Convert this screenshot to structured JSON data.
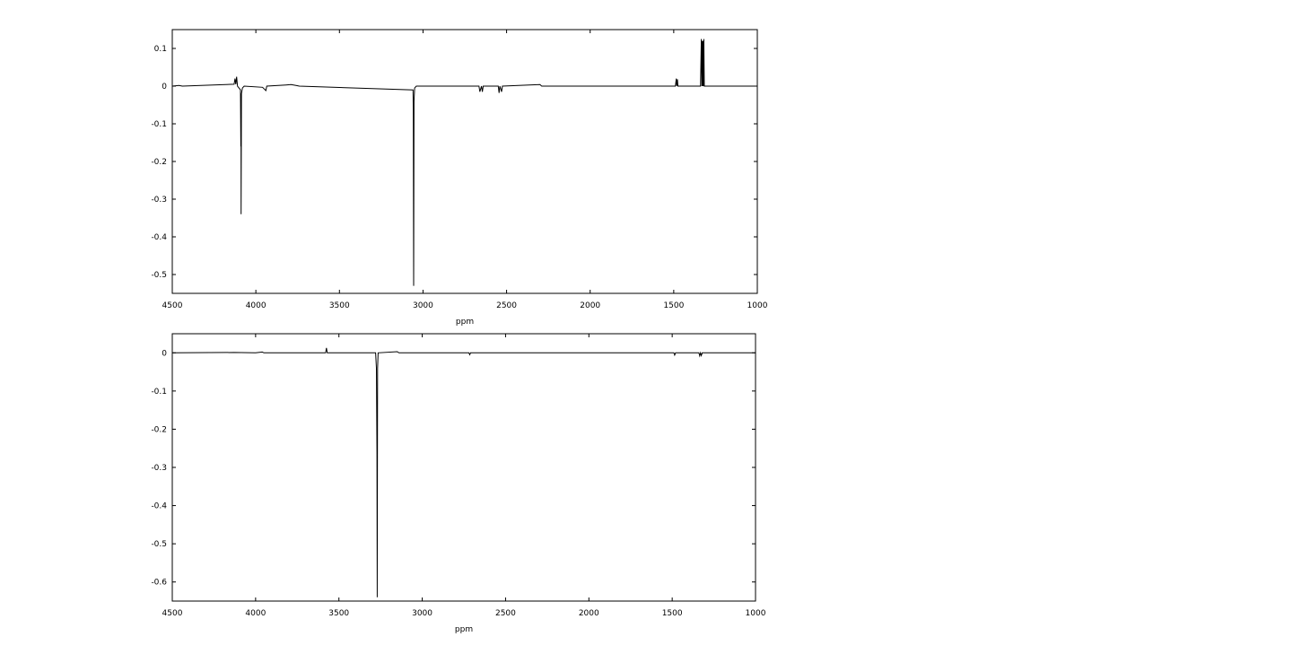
{
  "chart_data": [
    {
      "type": "line",
      "xlabel": "ppm",
      "ylabel": "",
      "xlim": [
        4500,
        1000
      ],
      "ylim": [
        -0.55,
        0.15
      ],
      "x_ticks": [
        4500,
        4000,
        3500,
        3000,
        2500,
        2000,
        1500,
        1000
      ],
      "x_tick_labels": [
        "4500",
        "4000",
        "3500",
        "3000",
        "2500",
        "2000",
        "1500",
        "1000"
      ],
      "y_ticks": [
        0.1,
        0,
        -0.1,
        -0.2,
        -0.3,
        -0.4,
        -0.5
      ],
      "y_tick_labels": [
        "0.1",
        "0",
        "-0.1",
        "-0.2",
        "-0.3",
        "-0.4",
        "-0.5"
      ],
      "grid": false,
      "legend": "none",
      "series": [
        {
          "points": [
            [
              4500,
              0.0
            ],
            [
              4460,
              0.002
            ],
            [
              4440,
              0.0
            ],
            [
              4130,
              0.005
            ],
            [
              4125,
              0.02
            ],
            [
              4120,
              0.005
            ],
            [
              4115,
              0.025
            ],
            [
              4110,
              0.0
            ],
            [
              4092,
              -0.01
            ],
            [
              4090,
              -0.16
            ],
            [
              4089,
              -0.02
            ],
            [
              4088,
              -0.34
            ],
            [
              4086,
              -0.02
            ],
            [
              4080,
              -0.005
            ],
            [
              4070,
              0.0
            ],
            [
              3960,
              -0.003
            ],
            [
              3940,
              -0.012
            ],
            [
              3935,
              0.0
            ],
            [
              3820,
              0.003
            ],
            [
              3790,
              0.004
            ],
            [
              3760,
              0.002
            ],
            [
              3740,
              0.0
            ],
            [
              3060,
              -0.01
            ],
            [
              3058,
              -0.065
            ],
            [
              3056,
              -0.53
            ],
            [
              3054,
              -0.04
            ],
            [
              3050,
              -0.005
            ],
            [
              3040,
              0.0
            ],
            [
              2665,
              0.0
            ],
            [
              2660,
              -0.015
            ],
            [
              2650,
              0.0
            ],
            [
              2645,
              -0.015
            ],
            [
              2640,
              0.0
            ],
            [
              2550,
              0.0
            ],
            [
              2545,
              -0.018
            ],
            [
              2540,
              0.0
            ],
            [
              2530,
              -0.015
            ],
            [
              2525,
              0.0
            ],
            [
              2300,
              0.004
            ],
            [
              2290,
              0.0
            ],
            [
              1490,
              0.0
            ],
            [
              1485,
              0.02
            ],
            [
              1482,
              0.0
            ],
            [
              1478,
              0.018
            ],
            [
              1475,
              0.0
            ],
            [
              1340,
              0.0
            ],
            [
              1335,
              0.125
            ],
            [
              1332,
              0.0
            ],
            [
              1330,
              0.12
            ],
            [
              1327,
              0.0
            ],
            [
              1325,
              0.12
            ],
            [
              1322,
              0.0
            ],
            [
              1320,
              0.125
            ],
            [
              1317,
              0.0
            ],
            [
              1000,
              0.0
            ]
          ]
        }
      ]
    },
    {
      "type": "line",
      "xlabel": "ppm",
      "ylabel": "",
      "xlim": [
        4500,
        1000
      ],
      "ylim": [
        -0.65,
        0.05
      ],
      "x_ticks": [
        4500,
        4000,
        3500,
        3000,
        2500,
        2000,
        1500,
        1000
      ],
      "x_tick_labels": [
        "4500",
        "4000",
        "3500",
        "3000",
        "2500",
        "2000",
        "1500",
        "1000"
      ],
      "y_ticks": [
        0,
        -0.1,
        -0.2,
        -0.3,
        -0.4,
        -0.5,
        -0.6
      ],
      "y_tick_labels": [
        "0",
        "-0.1",
        "-0.2",
        "-0.3",
        "-0.4",
        "-0.5",
        "-0.6"
      ],
      "grid": false,
      "legend": "none",
      "series": [
        {
          "points": [
            [
              4500,
              0.0
            ],
            [
              4130,
              0.001
            ],
            [
              4000,
              0.0
            ],
            [
              3960,
              0.002
            ],
            [
              3950,
              0.0
            ],
            [
              3580,
              0.0
            ],
            [
              3575,
              0.013
            ],
            [
              3570,
              0.0
            ],
            [
              3280,
              0.0
            ],
            [
              3275,
              -0.04
            ],
            [
              3272,
              -0.26
            ],
            [
              3270,
              -0.64
            ],
            [
              3268,
              -0.04
            ],
            [
              3265,
              0.0
            ],
            [
              3150,
              0.003
            ],
            [
              3140,
              0.0
            ],
            [
              2720,
              0.0
            ],
            [
              2715,
              -0.005
            ],
            [
              2710,
              0.0
            ],
            [
              1490,
              0.0
            ],
            [
              1485,
              -0.006
            ],
            [
              1480,
              0.0
            ],
            [
              1340,
              0.0
            ],
            [
              1335,
              -0.008
            ],
            [
              1330,
              0.0
            ],
            [
              1325,
              -0.007
            ],
            [
              1320,
              0.0
            ],
            [
              1000,
              0.0
            ]
          ]
        }
      ]
    }
  ]
}
